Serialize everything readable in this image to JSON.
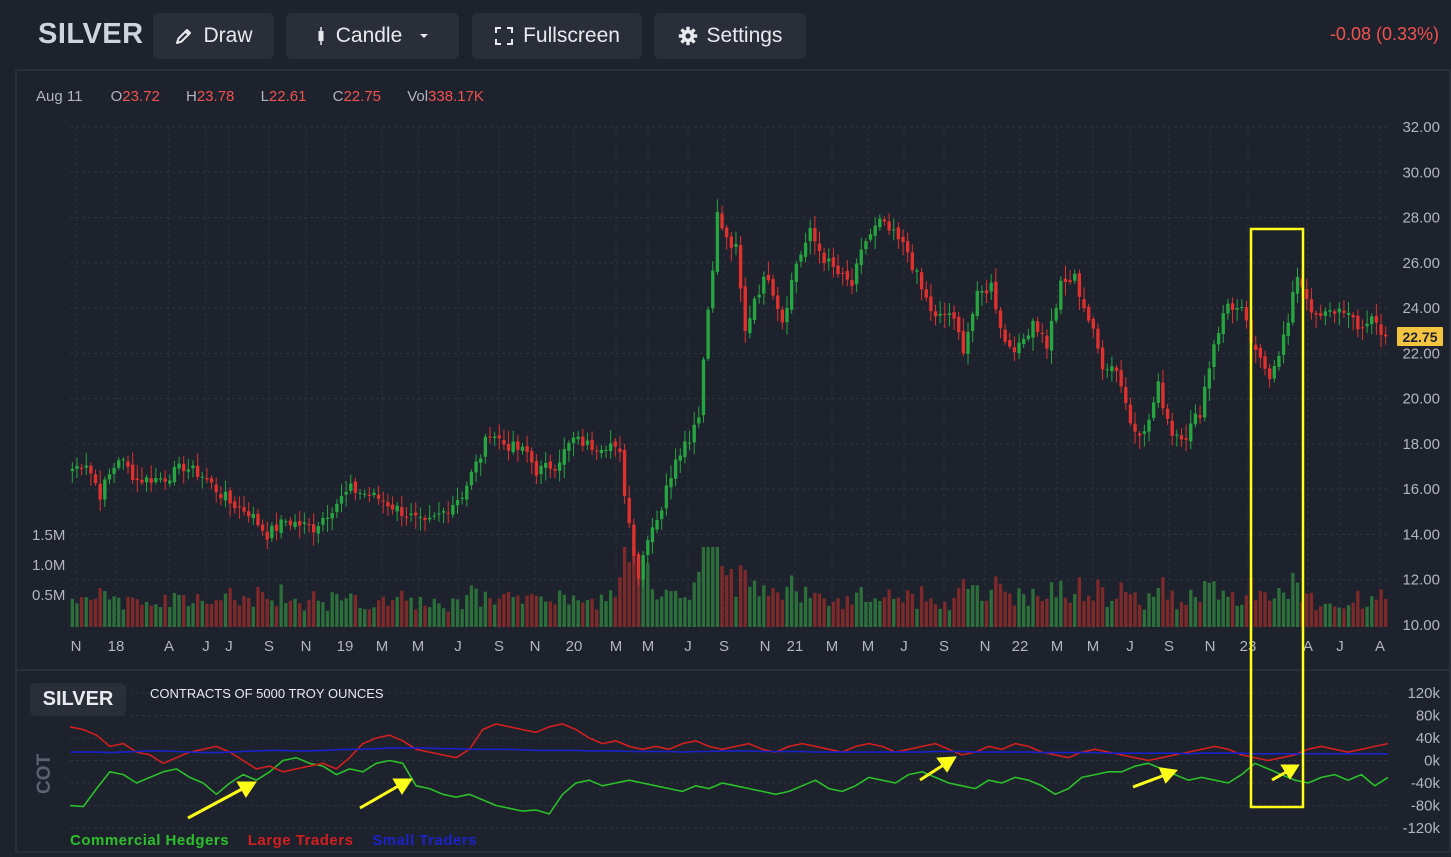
{
  "toolbar": {
    "symbol": "SILVER",
    "draw_label": "Draw",
    "candle_label": "Candle",
    "fullscreen_label": "Fullscreen",
    "settings_label": "Settings",
    "change": "-0.08 (0.33%)",
    "icons": [
      "pencil-icon",
      "candle-icon",
      "chevron-down-icon",
      "fullscreen-icon",
      "gear-icon"
    ]
  },
  "ohlc": {
    "date": "Aug 11",
    "o_label": "O",
    "o": "23.72",
    "h_label": "H",
    "h": "23.78",
    "l_label": "L",
    "l": "22.61",
    "c_label": "C",
    "c": "22.75",
    "vol_label": "Vol",
    "vol": "338.17K"
  },
  "colors": {
    "background": "#1e222d",
    "up": "#26a641",
    "down": "#e0312f",
    "commercial": "#2bc02b",
    "large": "#d21f1f",
    "small": "#1a22c8",
    "highlight": "#ffff1a"
  },
  "chart_data": [
    {
      "type": "candlestick",
      "title": "",
      "y_ticks": [
        "32.00",
        "30.00",
        "28.00",
        "26.00",
        "24.00",
        "22.00",
        "20.00",
        "18.00",
        "16.00",
        "14.00",
        "12.00",
        "10.00"
      ],
      "ylim": [
        10,
        32
      ],
      "last_price_label": "22.75",
      "x_ticks": [
        "N",
        "18",
        "A",
        "J",
        "J",
        "S",
        "N",
        "19",
        "M",
        "M",
        "J",
        "S",
        "N",
        "20",
        "M",
        "M",
        "J",
        "S",
        "N",
        "21",
        "M",
        "M",
        "J",
        "S",
        "N",
        "22",
        "M",
        "M",
        "J",
        "S",
        "N",
        "23",
        "A",
        "J",
        "A"
      ],
      "close_anchors": [
        [
          0,
          16.9
        ],
        [
          3,
          17.2
        ],
        [
          6,
          15.8
        ],
        [
          10,
          17.4
        ],
        [
          14,
          16.4
        ],
        [
          20,
          16.5
        ],
        [
          24,
          17.0
        ],
        [
          28,
          16.6
        ],
        [
          34,
          15.4
        ],
        [
          38,
          15.0
        ],
        [
          42,
          14.0
        ],
        [
          46,
          14.6
        ],
        [
          52,
          14.3
        ],
        [
          56,
          15.2
        ],
        [
          60,
          16.0
        ],
        [
          66,
          15.6
        ],
        [
          72,
          14.9
        ],
        [
          76,
          14.4
        ],
        [
          80,
          15.0
        ],
        [
          84,
          15.8
        ],
        [
          88,
          17.5
        ],
        [
          90,
          18.6
        ],
        [
          93,
          18.0
        ],
        [
          98,
          17.6
        ],
        [
          100,
          16.8
        ],
        [
          104,
          17.1
        ],
        [
          108,
          18.2
        ],
        [
          112,
          17.9
        ],
        [
          116,
          18.0
        ],
        [
          118,
          17.4
        ],
        [
          120,
          14.5
        ],
        [
          122,
          12.2
        ],
        [
          124,
          14.0
        ],
        [
          127,
          15.2
        ],
        [
          130,
          17.5
        ],
        [
          133,
          18.3
        ],
        [
          135,
          19.5
        ],
        [
          137,
          24.0
        ],
        [
          139,
          28.1
        ],
        [
          141,
          27.0
        ],
        [
          143,
          26.5
        ],
        [
          145,
          22.9
        ],
        [
          147,
          24.5
        ],
        [
          150,
          25.5
        ],
        [
          153,
          23.5
        ],
        [
          156,
          26.0
        ],
        [
          159,
          27.3
        ],
        [
          162,
          26.2
        ],
        [
          165,
          25.5
        ],
        [
          168,
          25.0
        ],
        [
          171,
          27.0
        ],
        [
          174,
          27.8
        ],
        [
          177,
          27.2
        ],
        [
          180,
          26.5
        ],
        [
          183,
          24.8
        ],
        [
          186,
          23.5
        ],
        [
          189,
          23.8
        ],
        [
          192,
          22.3
        ],
        [
          195,
          24.5
        ],
        [
          198,
          25.0
        ],
        [
          201,
          22.5
        ],
        [
          204,
          22.2
        ],
        [
          207,
          23.5
        ],
        [
          210,
          22.4
        ],
        [
          213,
          25.0
        ],
        [
          216,
          25.3
        ],
        [
          219,
          23.5
        ],
        [
          222,
          21.5
        ],
        [
          225,
          21.4
        ],
        [
          228,
          19.0
        ],
        [
          231,
          18.4
        ],
        [
          234,
          20.5
        ],
        [
          237,
          18.5
        ],
        [
          240,
          18.4
        ],
        [
          243,
          19.5
        ],
        [
          246,
          22.5
        ],
        [
          249,
          24.2
        ],
        [
          252,
          23.8
        ],
        [
          255,
          21.9
        ],
        [
          258,
          21.1
        ],
        [
          260,
          22.1
        ],
        [
          262,
          23.3
        ],
        [
          264,
          25.5
        ],
        [
          266,
          24.5
        ],
        [
          268,
          23.5
        ],
        [
          271,
          23.8
        ],
        [
          274,
          24.0
        ],
        [
          277,
          23.0
        ],
        [
          280,
          23.6
        ],
        [
          283,
          22.75
        ]
      ],
      "volume_ticks": [
        "1.5M",
        "1.0M",
        "0.5M"
      ],
      "highlight": {
        "from": "2023-01",
        "to": "2023-03"
      }
    },
    {
      "type": "line",
      "badge": "SILVER",
      "title": "CONTRACTS OF 5000 TROY OUNCES",
      "ylabel": "COT",
      "y_ticks": [
        "120k",
        "80k",
        "40k",
        "0k",
        "-40k",
        "-80k",
        "-120k"
      ],
      "ylim": [
        -120000,
        120000
      ],
      "series": [
        {
          "name": "Commercial Hedgers",
          "color": "#2bc02b",
          "values": [
            -80,
            -82,
            -50,
            -20,
            -25,
            -40,
            -30,
            -20,
            -15,
            -30,
            -40,
            -60,
            -40,
            -25,
            -35,
            -20,
            0,
            5,
            -5,
            -10,
            -25,
            -15,
            -20,
            -5,
            0,
            -5,
            -45,
            -50,
            -60,
            -65,
            -60,
            -70,
            -80,
            -85,
            -90,
            -88,
            -95,
            -60,
            -40,
            -35,
            -45,
            -40,
            -35,
            -40,
            -45,
            -50,
            -55,
            -45,
            -50,
            -40,
            -45,
            -50,
            -55,
            -60,
            -55,
            -45,
            -35,
            -50,
            -55,
            -45,
            -30,
            -35,
            -40,
            -25,
            -20,
            -30,
            -40,
            -45,
            -50,
            -35,
            -40,
            -30,
            -35,
            -45,
            -60,
            -50,
            -30,
            -25,
            -20,
            -20,
            -10,
            -5,
            -15,
            -25,
            -35,
            -30,
            -35,
            -40,
            -25,
            -5,
            -15,
            -25,
            -35,
            -40,
            -30,
            -25,
            -35,
            -25,
            -45,
            -30
          ]
        },
        {
          "name": "Large Traders",
          "color": "#d21f1f",
          "values": [
            60,
            55,
            45,
            25,
            30,
            15,
            10,
            -5,
            5,
            15,
            20,
            25,
            15,
            0,
            -15,
            -10,
            -20,
            -15,
            -10,
            -5,
            -15,
            5,
            30,
            40,
            45,
            35,
            20,
            15,
            10,
            5,
            20,
            55,
            65,
            60,
            55,
            50,
            60,
            65,
            55,
            40,
            30,
            35,
            25,
            20,
            25,
            20,
            30,
            35,
            25,
            20,
            25,
            30,
            20,
            15,
            25,
            30,
            25,
            20,
            15,
            25,
            30,
            25,
            15,
            20,
            25,
            30,
            20,
            10,
            15,
            25,
            20,
            30,
            25,
            15,
            10,
            5,
            15,
            20,
            15,
            10,
            5,
            0,
            5,
            10,
            15,
            20,
            25,
            20,
            10,
            5,
            0,
            5,
            10,
            20,
            25,
            20,
            15,
            20,
            25,
            30
          ]
        },
        {
          "name": "Small Traders",
          "color": "#1a22c8",
          "values": [
            15,
            15,
            15,
            14,
            15,
            16,
            17,
            17,
            16,
            15,
            14,
            14,
            15,
            16,
            17,
            18,
            18,
            17,
            17,
            18,
            19,
            20,
            20,
            21,
            22,
            22,
            22,
            22,
            21,
            21,
            20,
            20,
            20,
            20,
            19,
            18,
            18,
            18,
            18,
            17,
            17,
            17,
            16,
            16,
            16,
            16,
            15,
            16,
            16,
            17,
            17,
            17,
            16,
            16,
            16,
            16,
            15,
            15,
            15,
            15,
            15,
            15,
            15,
            15,
            15,
            16,
            16,
            16,
            15,
            15,
            15,
            15,
            15,
            14,
            14,
            14,
            14,
            14,
            13,
            13,
            13,
            13,
            13,
            13,
            12,
            13,
            13,
            13,
            13,
            12,
            12,
            12,
            12,
            12,
            12,
            12,
            12,
            12,
            12,
            12
          ]
        }
      ]
    }
  ]
}
